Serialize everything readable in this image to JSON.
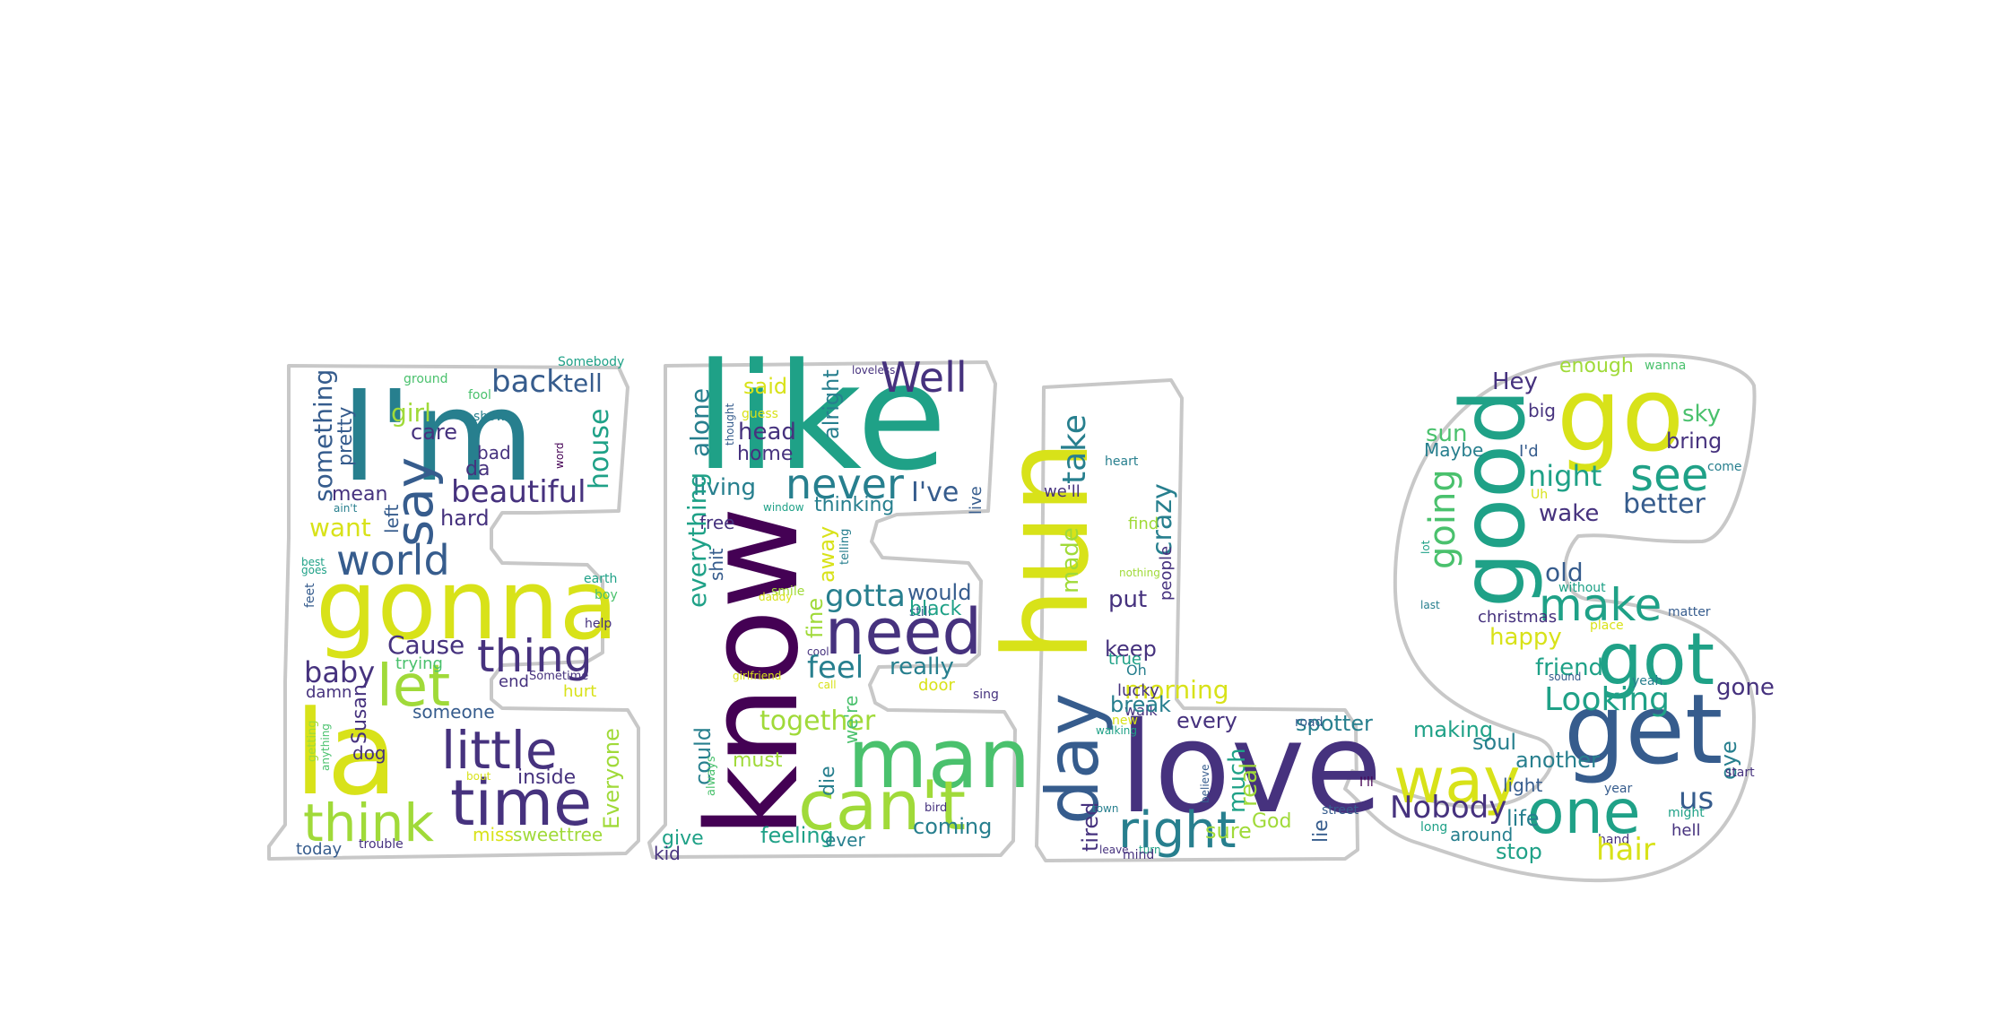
{
  "palette": {
    "yellow": "#d8e219",
    "lime": "#a0da39",
    "green": "#4ac16d",
    "teal_green": "#1fa187",
    "teal": "#277f8e",
    "blue_teal": "#365c8d",
    "indigo": "#46327e",
    "purple": "#440154",
    "outline": "#c8c8c8"
  },
  "letters": [
    "E",
    "E",
    "L",
    "S"
  ],
  "words": [
    {
      "text": "I'm",
      "color": "teal"
    },
    {
      "text": "gonna",
      "color": "yellow"
    },
    {
      "text": "la",
      "color": "yellow"
    },
    {
      "text": "think",
      "color": "lime"
    },
    {
      "text": "time",
      "color": "indigo"
    },
    {
      "text": "little",
      "color": "indigo"
    },
    {
      "text": "let",
      "color": "lime"
    },
    {
      "text": "thing",
      "color": "indigo"
    },
    {
      "text": "world",
      "color": "blue_teal"
    },
    {
      "text": "say",
      "color": "blue_teal"
    },
    {
      "text": "beautiful",
      "color": "indigo"
    },
    {
      "text": "back",
      "color": "blue_teal"
    },
    {
      "text": "tell",
      "color": "blue_teal"
    },
    {
      "text": "girl",
      "color": "lime"
    },
    {
      "text": "care",
      "color": "indigo"
    },
    {
      "text": "something",
      "color": "blue_teal"
    },
    {
      "text": "pretty",
      "color": "blue_teal"
    },
    {
      "text": "ground",
      "color": "green"
    },
    {
      "text": "fool",
      "color": "green"
    },
    {
      "text": "Somebody",
      "color": "teal_green"
    },
    {
      "text": "show",
      "color": "teal"
    },
    {
      "text": "bad",
      "color": "indigo"
    },
    {
      "text": "word",
      "color": "purple"
    },
    {
      "text": "da",
      "color": "indigo"
    },
    {
      "text": "house",
      "color": "teal_green"
    },
    {
      "text": "mean",
      "color": "indigo"
    },
    {
      "text": "ain't",
      "color": "teal"
    },
    {
      "text": "left",
      "color": "blue_teal"
    },
    {
      "text": "hard",
      "color": "indigo"
    },
    {
      "text": "want",
      "color": "yellow"
    },
    {
      "text": "best",
      "color": "teal_green"
    },
    {
      "text": "goes",
      "color": "teal_green"
    },
    {
      "text": "feet",
      "color": "blue_teal"
    },
    {
      "text": "earth",
      "color": "teal_green"
    },
    {
      "text": "boy",
      "color": "green"
    },
    {
      "text": "help",
      "color": "indigo"
    },
    {
      "text": "Cause",
      "color": "indigo"
    },
    {
      "text": "trying",
      "color": "green"
    },
    {
      "text": "baby",
      "color": "indigo"
    },
    {
      "text": "end",
      "color": "indigo"
    },
    {
      "text": "Sometime",
      "color": "indigo"
    },
    {
      "text": "hurt",
      "color": "yellow"
    },
    {
      "text": "damn",
      "color": "indigo"
    },
    {
      "text": "Susan",
      "color": "indigo"
    },
    {
      "text": "someone",
      "color": "blue_teal"
    },
    {
      "text": "getting",
      "color": "lime"
    },
    {
      "text": "anything",
      "color": "green"
    },
    {
      "text": "dog",
      "color": "indigo"
    },
    {
      "text": "inside",
      "color": "indigo"
    },
    {
      "text": "bout",
      "color": "yellow"
    },
    {
      "text": "Everyone",
      "color": "lime"
    },
    {
      "text": "miss",
      "color": "yellow"
    },
    {
      "text": "sweet",
      "color": "lime"
    },
    {
      "text": "tree",
      "color": "lime"
    },
    {
      "text": "today",
      "color": "blue_teal"
    },
    {
      "text": "trouble",
      "color": "indigo"
    },
    {
      "text": "like",
      "color": "teal_green"
    },
    {
      "text": "know",
      "color": "purple"
    },
    {
      "text": "man",
      "color": "green"
    },
    {
      "text": "can't",
      "color": "lime"
    },
    {
      "text": "need",
      "color": "indigo"
    },
    {
      "text": "Well",
      "color": "indigo"
    },
    {
      "text": "never",
      "color": "teal"
    },
    {
      "text": "I've",
      "color": "blue_teal"
    },
    {
      "text": "said",
      "color": "yellow"
    },
    {
      "text": "guess",
      "color": "yellow"
    },
    {
      "text": "head",
      "color": "indigo"
    },
    {
      "text": "home",
      "color": "indigo"
    },
    {
      "text": "alright",
      "color": "teal"
    },
    {
      "text": "alone",
      "color": "teal"
    },
    {
      "text": "thought",
      "color": "blue_teal"
    },
    {
      "text": "living",
      "color": "teal"
    },
    {
      "text": "live",
      "color": "blue_teal"
    },
    {
      "text": "window",
      "color": "teal_green"
    },
    {
      "text": "thinking",
      "color": "teal"
    },
    {
      "text": "free",
      "color": "indigo"
    },
    {
      "text": "away",
      "color": "yellow"
    },
    {
      "text": "telling",
      "color": "teal"
    },
    {
      "text": "everything",
      "color": "teal_green"
    },
    {
      "text": "shit",
      "color": "blue_teal"
    },
    {
      "text": "smile",
      "color": "lime"
    },
    {
      "text": "gotta",
      "color": "teal"
    },
    {
      "text": "would",
      "color": "blue_teal"
    },
    {
      "text": "still",
      "color": "blue_teal"
    },
    {
      "text": "black",
      "color": "teal_green"
    },
    {
      "text": "fine",
      "color": "lime"
    },
    {
      "text": "daddy",
      "color": "yellow"
    },
    {
      "text": "cool",
      "color": "indigo"
    },
    {
      "text": "feel",
      "color": "teal"
    },
    {
      "text": "really",
      "color": "teal"
    },
    {
      "text": "door",
      "color": "yellow"
    },
    {
      "text": "girlfriend",
      "color": "yellow"
    },
    {
      "text": "call",
      "color": "yellow"
    },
    {
      "text": "sing",
      "color": "indigo"
    },
    {
      "text": "together",
      "color": "lime"
    },
    {
      "text": "could",
      "color": "teal"
    },
    {
      "text": "always",
      "color": "green"
    },
    {
      "text": "we're",
      "color": "green"
    },
    {
      "text": "die",
      "color": "teal"
    },
    {
      "text": "must",
      "color": "lime"
    },
    {
      "text": "bird",
      "color": "indigo"
    },
    {
      "text": "coming",
      "color": "teal"
    },
    {
      "text": "give",
      "color": "teal_green"
    },
    {
      "text": "feeling",
      "color": "teal_green"
    },
    {
      "text": "ever",
      "color": "teal"
    },
    {
      "text": "kid",
      "color": "indigo"
    },
    {
      "text": "loveless",
      "color": "indigo"
    },
    {
      "text": "hun",
      "color": "yellow"
    },
    {
      "text": "love",
      "color": "indigo"
    },
    {
      "text": "day",
      "color": "blue_teal"
    },
    {
      "text": "right",
      "color": "teal"
    },
    {
      "text": "take",
      "color": "teal"
    },
    {
      "text": "heart",
      "color": "teal"
    },
    {
      "text": "we'll",
      "color": "indigo"
    },
    {
      "text": "crazy",
      "color": "teal"
    },
    {
      "text": "find",
      "color": "lime"
    },
    {
      "text": "made",
      "color": "lime"
    },
    {
      "text": "people",
      "color": "indigo"
    },
    {
      "text": "nothing",
      "color": "lime"
    },
    {
      "text": "put",
      "color": "indigo"
    },
    {
      "text": "keep",
      "color": "indigo"
    },
    {
      "text": "true",
      "color": "teal_green"
    },
    {
      "text": "morning",
      "color": "yellow"
    },
    {
      "text": "Oh",
      "color": "teal"
    },
    {
      "text": "lucky",
      "color": "indigo"
    },
    {
      "text": "walk",
      "color": "indigo"
    },
    {
      "text": "new",
      "color": "yellow"
    },
    {
      "text": "tired",
      "color": "indigo"
    },
    {
      "text": "break",
      "color": "teal"
    },
    {
      "text": "walking",
      "color": "teal_green"
    },
    {
      "text": "sure",
      "color": "lime"
    },
    {
      "text": "much",
      "color": "teal_green"
    },
    {
      "text": "every",
      "color": "indigo"
    },
    {
      "text": "spotter",
      "color": "teal"
    },
    {
      "text": "road",
      "color": "blue_teal"
    },
    {
      "text": "believe",
      "color": "blue_teal"
    },
    {
      "text": "real",
      "color": "lime"
    },
    {
      "text": "lie",
      "color": "blue_teal"
    },
    {
      "text": "town",
      "color": "teal"
    },
    {
      "text": "God",
      "color": "lime"
    },
    {
      "text": "street",
      "color": "blue_teal"
    },
    {
      "text": "leave",
      "color": "indigo"
    },
    {
      "text": "turn",
      "color": "teal_green"
    },
    {
      "text": "mind",
      "color": "indigo"
    },
    {
      "text": "go",
      "color": "yellow"
    },
    {
      "text": "good",
      "color": "teal_green"
    },
    {
      "text": "get",
      "color": "blue_teal"
    },
    {
      "text": "got",
      "color": "teal_green"
    },
    {
      "text": "way",
      "color": "yellow"
    },
    {
      "text": "one",
      "color": "teal_green"
    },
    {
      "text": "see",
      "color": "teal_green"
    },
    {
      "text": "make",
      "color": "teal_green"
    },
    {
      "text": "going",
      "color": "green"
    },
    {
      "text": "Looking",
      "color": "teal_green"
    },
    {
      "text": "night",
      "color": "teal_green"
    },
    {
      "text": "better",
      "color": "blue_teal"
    },
    {
      "text": "Hey",
      "color": "indigo"
    },
    {
      "text": "enough",
      "color": "lime"
    },
    {
      "text": "wanna",
      "color": "green"
    },
    {
      "text": "big",
      "color": "indigo"
    },
    {
      "text": "sky",
      "color": "green"
    },
    {
      "text": "sun",
      "color": "green"
    },
    {
      "text": "Maybe",
      "color": "teal"
    },
    {
      "text": "I'd",
      "color": "blue_teal"
    },
    {
      "text": "bring",
      "color": "indigo"
    },
    {
      "text": "come",
      "color": "teal"
    },
    {
      "text": "Uh",
      "color": "yellow"
    },
    {
      "text": "wake",
      "color": "indigo"
    },
    {
      "text": "lot",
      "color": "teal_green"
    },
    {
      "text": "old",
      "color": "blue_teal"
    },
    {
      "text": "without",
      "color": "teal_green"
    },
    {
      "text": "last",
      "color": "teal"
    },
    {
      "text": "matter",
      "color": "blue_teal"
    },
    {
      "text": "place",
      "color": "yellow"
    },
    {
      "text": "happy",
      "color": "yellow"
    },
    {
      "text": "christmas",
      "color": "indigo"
    },
    {
      "text": "friend",
      "color": "teal_green"
    },
    {
      "text": "sound",
      "color": "blue_teal"
    },
    {
      "text": "yeah",
      "color": "teal"
    },
    {
      "text": "gone",
      "color": "indigo"
    },
    {
      "text": "making",
      "color": "teal_green"
    },
    {
      "text": "soul",
      "color": "teal"
    },
    {
      "text": "eye",
      "color": "teal"
    },
    {
      "text": "another",
      "color": "teal"
    },
    {
      "text": "light",
      "color": "blue_teal"
    },
    {
      "text": "year",
      "color": "blue_teal"
    },
    {
      "text": "start",
      "color": "indigo"
    },
    {
      "text": "Nobody",
      "color": "indigo"
    },
    {
      "text": "us",
      "color": "blue_teal"
    },
    {
      "text": "I'll",
      "color": "purple"
    },
    {
      "text": "life",
      "color": "teal"
    },
    {
      "text": "might",
      "color": "teal_green"
    },
    {
      "text": "long",
      "color": "teal_green"
    },
    {
      "text": "around",
      "color": "teal"
    },
    {
      "text": "hell",
      "color": "indigo"
    },
    {
      "text": "hand",
      "color": "indigo"
    },
    {
      "text": "stop",
      "color": "teal_green"
    },
    {
      "text": "hair",
      "color": "yellow"
    },
    {
      "text": "dream",
      "color": "teal_green"
    },
    {
      "text": "look",
      "color": "teal"
    }
  ]
}
